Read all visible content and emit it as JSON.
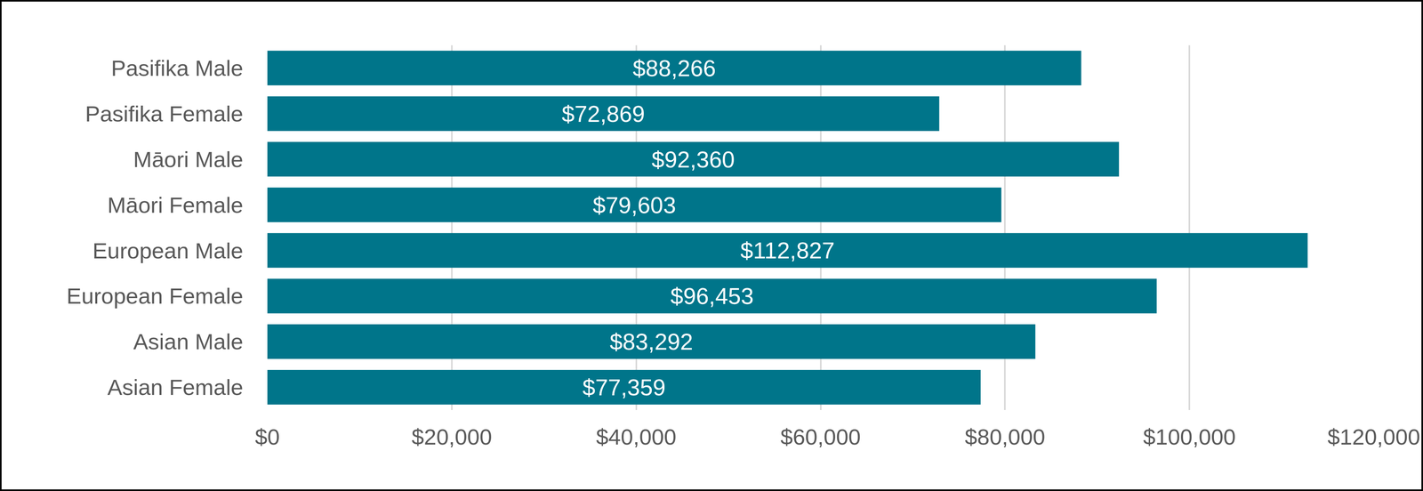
{
  "chart_data": {
    "type": "bar",
    "orientation": "horizontal",
    "categories": [
      "Pasifika Male",
      "Pasifika Female",
      "Māori Male",
      "Māori Female",
      "European Male",
      "European Female",
      "Asian Male",
      "Asian Female"
    ],
    "values": [
      88266,
      72869,
      92360,
      79603,
      112827,
      96453,
      83292,
      77359
    ],
    "value_labels": [
      "$88,266",
      "$72,869",
      "$92,360",
      "$79,603",
      "$112,827",
      "$96,453",
      "$83,292",
      "$77,359"
    ],
    "color": "#00758a",
    "xlim": [
      0,
      120000
    ],
    "xticks": [
      {
        "value": 0,
        "label": "$0"
      },
      {
        "value": 20000,
        "label": "$20,000"
      },
      {
        "value": 40000,
        "label": "$40,000"
      },
      {
        "value": 60000,
        "label": "$60,000"
      },
      {
        "value": 80000,
        "label": "$80,000"
      },
      {
        "value": 100000,
        "label": "$100,000"
      },
      {
        "value": 120000,
        "label": "$120,000"
      }
    ],
    "grid": true,
    "data_labels": true
  }
}
